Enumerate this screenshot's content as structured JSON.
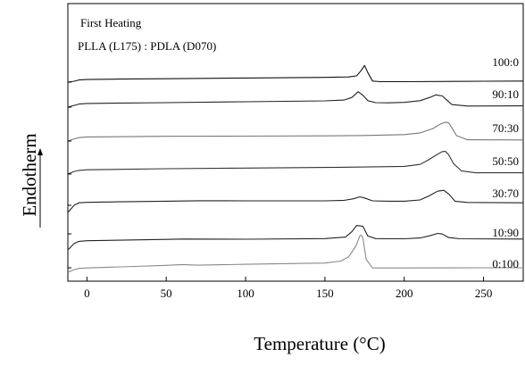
{
  "chart_data": {
    "type": "line",
    "title": "First Heating",
    "subtitle": "PLLA (L175) : PDLA (D070)",
    "xlabel": "Temperature (°C)",
    "ylabel": "Endotherm",
    "xlim": [
      -12,
      275
    ],
    "xticks": [
      0,
      50,
      100,
      150,
      200,
      250
    ],
    "y_ticks_labeled": false,
    "grid": false,
    "series": [
      {
        "name": "100:0",
        "color": "#111111",
        "x": [
          -12,
          -8,
          -5,
          0,
          20,
          50,
          100,
          150,
          165,
          170,
          173,
          175,
          177,
          180,
          185,
          200,
          250,
          275
        ],
        "y": [
          0,
          0.04,
          0.1,
          0.12,
          0.14,
          0.16,
          0.19,
          0.22,
          0.24,
          0.29,
          0.55,
          0.78,
          0.45,
          0.05,
          0.02,
          0.02,
          0.04,
          0.05
        ]
      },
      {
        "name": "90:10",
        "color": "#222222",
        "x": [
          -12,
          -8,
          -5,
          0,
          50,
          100,
          150,
          162,
          167,
          171,
          174,
          177,
          182,
          190,
          200,
          210,
          216,
          220,
          224,
          227,
          230,
          240,
          275
        ],
        "y": [
          0,
          0.08,
          0.14,
          0.17,
          0.21,
          0.25,
          0.29,
          0.33,
          0.45,
          0.72,
          0.55,
          0.3,
          0.21,
          0.2,
          0.22,
          0.3,
          0.45,
          0.57,
          0.52,
          0.32,
          0.12,
          0.05,
          0.06
        ]
      },
      {
        "name": "70:30",
        "color": "#777777",
        "x": [
          -12,
          -8,
          -5,
          0,
          50,
          100,
          150,
          175,
          200,
          210,
          218,
          223,
          226,
          228,
          230,
          233,
          240,
          275
        ],
        "y": [
          0,
          0.1,
          0.16,
          0.19,
          0.22,
          0.23,
          0.24,
          0.26,
          0.3,
          0.38,
          0.58,
          0.8,
          0.88,
          0.85,
          0.62,
          0.25,
          0.06,
          0.05
        ]
      },
      {
        "name": "50:50",
        "color": "#333333",
        "x": [
          -12,
          -8,
          -5,
          0,
          50,
          100,
          150,
          175,
          200,
          210,
          215,
          220,
          224,
          226,
          228,
          231,
          236,
          245,
          275
        ],
        "y": [
          0,
          0.12,
          0.17,
          0.2,
          0.25,
          0.28,
          0.31,
          0.33,
          0.36,
          0.45,
          0.65,
          0.88,
          1.05,
          1.06,
          0.9,
          0.5,
          0.15,
          0.06,
          0.06
        ]
      },
      {
        "name": "30:70",
        "color": "#222222",
        "x": [
          -12,
          -8,
          -5,
          0,
          20,
          50,
          70,
          100,
          150,
          162,
          168,
          172,
          175,
          180,
          190,
          200,
          210,
          216,
          221,
          225,
          228,
          232,
          240,
          275
        ],
        "y": [
          0,
          0.45,
          0.6,
          0.63,
          0.66,
          0.7,
          0.73,
          0.72,
          0.72,
          0.75,
          0.85,
          0.97,
          0.9,
          0.72,
          0.7,
          0.7,
          0.78,
          1.05,
          1.32,
          1.38,
          1.15,
          0.7,
          0.62,
          0.6
        ]
      },
      {
        "name": "10:90",
        "color": "#222222",
        "x": [
          -12,
          -8,
          -5,
          0,
          50,
          60,
          100,
          150,
          163,
          167,
          170,
          172,
          174,
          177,
          182,
          190,
          200,
          210,
          216,
          221,
          224,
          228,
          235,
          275
        ],
        "y": [
          0,
          0.3,
          0.4,
          0.43,
          0.49,
          0.51,
          0.5,
          0.53,
          0.6,
          0.85,
          1.14,
          1.12,
          1.1,
          0.65,
          0.53,
          0.52,
          0.52,
          0.56,
          0.66,
          0.77,
          0.74,
          0.58,
          0.52,
          0.51
        ]
      },
      {
        "name": "0:100",
        "color": "#888888",
        "x": [
          -12,
          -8,
          -5,
          0,
          30,
          50,
          60,
          70,
          100,
          150,
          160,
          165,
          168,
          170,
          172,
          173,
          174,
          176,
          180,
          200,
          250,
          275
        ],
        "y": [
          0,
          0.12,
          0.18,
          0.2,
          0.27,
          0.32,
          0.36,
          0.33,
          0.37,
          0.43,
          0.52,
          0.72,
          1.05,
          1.3,
          1.7,
          1.73,
          1.6,
          0.6,
          0.2,
          0.2,
          0.21,
          0.21
        ]
      }
    ]
  }
}
